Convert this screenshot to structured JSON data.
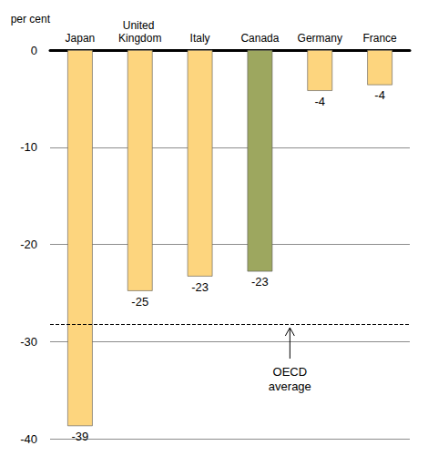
{
  "chart_data": {
    "type": "bar",
    "ylabel": "per cent",
    "categories": [
      "Japan",
      "United Kingdom",
      "Italy",
      "Canada",
      "Germany",
      "France"
    ],
    "values": [
      -38.7,
      -24.8,
      -23.3,
      -22.8,
      -4.2,
      -3.6
    ],
    "value_labels": [
      "-39",
      "-25",
      "-23",
      "-23",
      "-4",
      "-4"
    ],
    "colors": [
      "#fdd57e",
      "#fdd57e",
      "#fdd57e",
      "#9da75f",
      "#fdd57e",
      "#fdd57e"
    ],
    "ylim": [
      -40,
      0
    ],
    "yticks": [
      -40,
      -30,
      -20,
      -10,
      0
    ],
    "grid": true,
    "data_labels": true,
    "reference_line": {
      "value": -28.2,
      "label": "OECD average",
      "line_style": "dashed"
    }
  }
}
